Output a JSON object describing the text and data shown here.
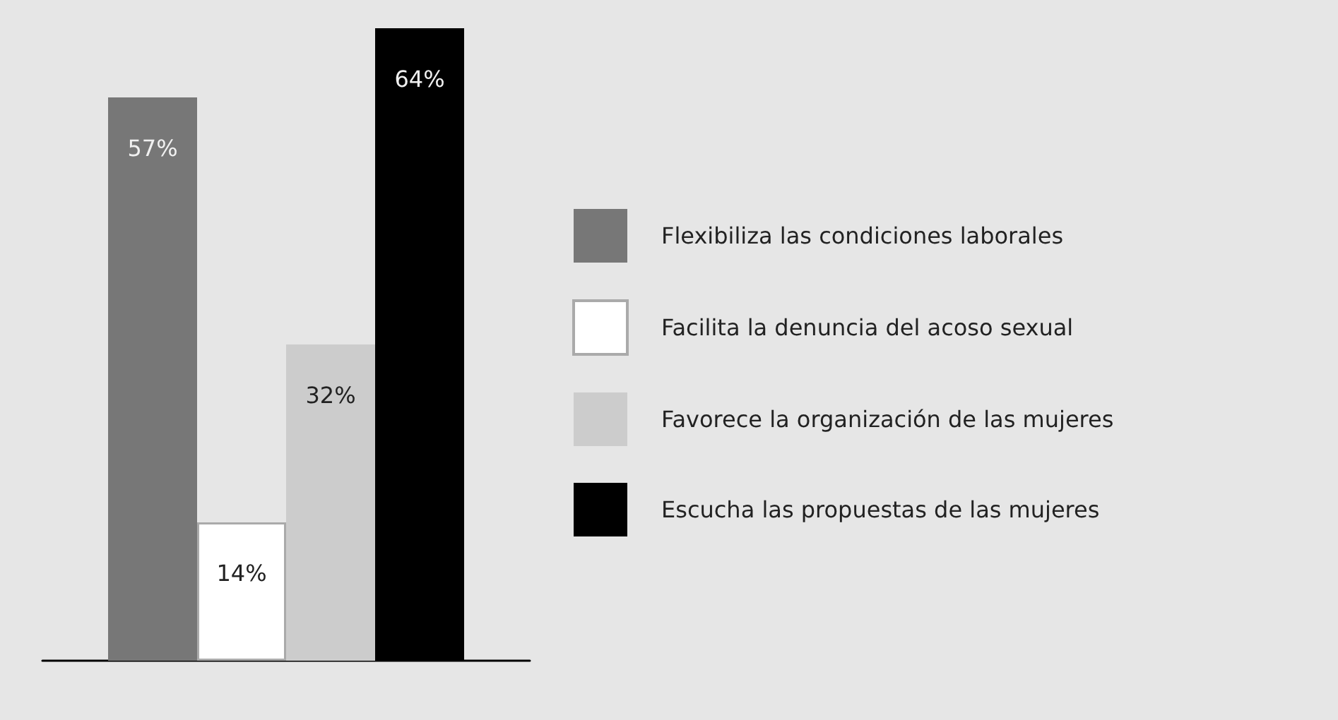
{
  "chart_data": {
    "type": "bar",
    "categories": [
      null
    ],
    "legend": "right",
    "series": [
      {
        "name": "Flexibiliza las condiciones laborales",
        "color": "#777777",
        "values": [
          57
        ],
        "value_labels": [
          "57%"
        ]
      },
      {
        "name": "Facilita la denuncia del acoso sexual",
        "color": "#ffffff",
        "values": [
          14
        ],
        "value_labels": [
          "14%"
        ]
      },
      {
        "name": "Favorece la organización de las mujeres",
        "color": "#cccccc",
        "values": [
          32
        ],
        "value_labels": [
          "32%"
        ]
      },
      {
        "name": "Escucha las propuestas de las mujeres",
        "color": "#000000",
        "values": [
          64
        ],
        "value_labels": [
          "64%"
        ]
      }
    ]
  }
}
